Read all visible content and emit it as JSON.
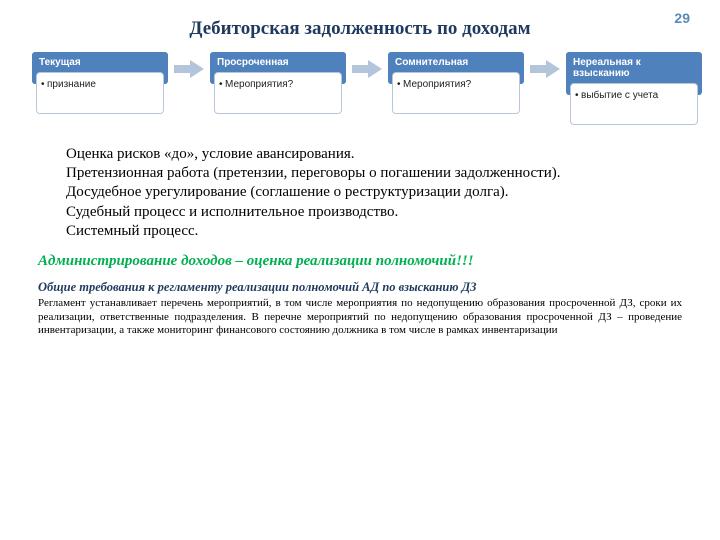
{
  "page_number": "29",
  "title": "Дебиторская задолженность по доходам",
  "colors": {
    "title": "#1f3a5f",
    "page_number": "#5b8ab5",
    "stage_header_bg": "#4f81bd",
    "stage_border": "#b8c7d8",
    "arrow_fill": "#b2c5db",
    "highlight": "#00b050",
    "subhead": "#1f3a5f"
  },
  "stages": [
    {
      "header": "Текущая",
      "body": "признание"
    },
    {
      "header": "Просроченная",
      "body": "Мероприятия?"
    },
    {
      "header": "Сомнительная",
      "body": "Мероприятия?"
    },
    {
      "header": "Нереальная к взысканию",
      "body": "выбытие с учета"
    }
  ],
  "paragraphs": [
    "Оценка рисков «до», условие авансирования.",
    "Претензионная работа (претензии, переговоры о погашении задолженности).",
    "Досудебное урегулирование (соглашение о реструктуризации долга).",
    "Судебный процесс и исполнительное производство.",
    "Системный процесс."
  ],
  "highlight": "Администрирование доходов – оценка реализации полномочий!!!",
  "subhead": "Общие требования к регламенту реализации полномочий АД по взысканию ДЗ",
  "bodytext": "Регламент устанавливает перечень мероприятий, в том числе мероприятия по недопущению образования просроченной ДЗ, сроки их реализации, ответственные подразделения. В перечне мероприятий по недопущению образования просроченной ДЗ – проведение инвентаризации, а также мониторинг финансового состоянию должника в том числе в рамках инвентаризации"
}
